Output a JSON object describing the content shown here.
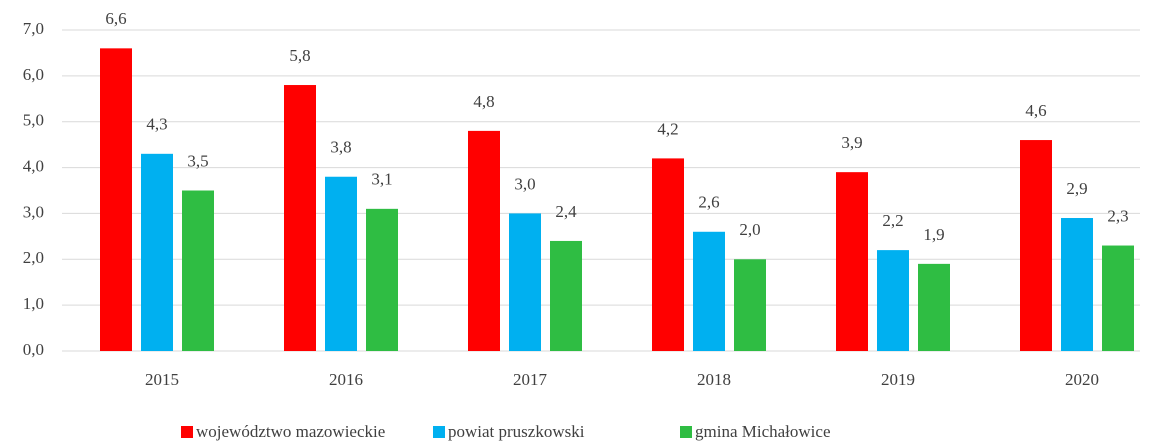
{
  "chart_data": {
    "type": "bar",
    "categories": [
      "2015",
      "2016",
      "2017",
      "2018",
      "2019",
      "2020"
    ],
    "series": [
      {
        "name": "województwo mazowieckie",
        "color": "#ff0000",
        "values": [
          6.6,
          5.8,
          4.8,
          4.2,
          3.9,
          4.6
        ],
        "value_labels": [
          "6,6",
          "5,8",
          "4,8",
          "4,2",
          "3,9",
          "4,6"
        ]
      },
      {
        "name": "powiat pruszkowski",
        "color": "#00b0f0",
        "values": [
          4.3,
          3.8,
          3.0,
          2.6,
          2.2,
          2.9
        ],
        "value_labels": [
          "4,3",
          "3,8",
          "3,0",
          "2,6",
          "2,2",
          "2,9"
        ]
      },
      {
        "name": "gmina Michałowice",
        "color": "#2fbd43",
        "values": [
          3.5,
          3.1,
          2.4,
          2.0,
          1.9,
          2.3
        ],
        "value_labels": [
          "3,5",
          "3,1",
          "2,4",
          "2,0",
          "1,9",
          "2,3"
        ]
      }
    ],
    "ylim": [
      0,
      7
    ],
    "yticks": [
      {
        "value": 0,
        "label": "0,0"
      },
      {
        "value": 1,
        "label": "1,0"
      },
      {
        "value": 2,
        "label": "2,0"
      },
      {
        "value": 3,
        "label": "3,0"
      },
      {
        "value": 4,
        "label": "4,0"
      },
      {
        "value": 5,
        "label": "5,0"
      },
      {
        "value": 6,
        "label": "6,0"
      },
      {
        "value": 7,
        "label": "7,0"
      }
    ],
    "grid": true,
    "legend": "bottom"
  }
}
